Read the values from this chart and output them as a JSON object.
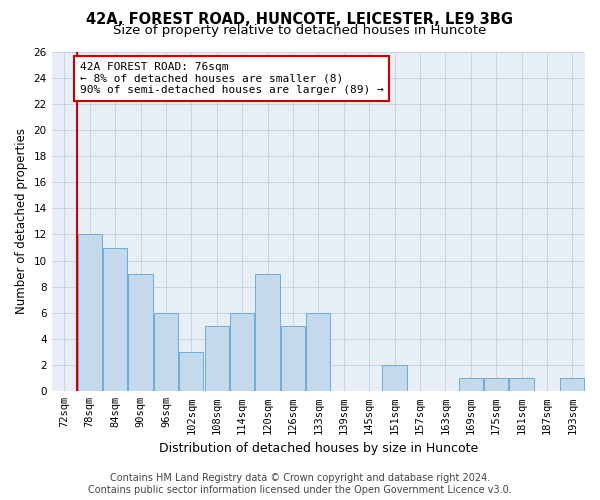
{
  "title": "42A, FOREST ROAD, HUNCOTE, LEICESTER, LE9 3BG",
  "subtitle": "Size of property relative to detached houses in Huncote",
  "xlabel": "Distribution of detached houses by size in Huncote",
  "ylabel": "Number of detached properties",
  "categories": [
    "72sqm",
    "78sqm",
    "84sqm",
    "90sqm",
    "96sqm",
    "102sqm",
    "108sqm",
    "114sqm",
    "120sqm",
    "126sqm",
    "133sqm",
    "139sqm",
    "145sqm",
    "151sqm",
    "157sqm",
    "163sqm",
    "169sqm",
    "175sqm",
    "181sqm",
    "187sqm",
    "193sqm"
  ],
  "values": [
    0,
    12,
    11,
    9,
    6,
    3,
    5,
    6,
    9,
    5,
    6,
    0,
    0,
    2,
    0,
    0,
    1,
    1,
    1,
    0,
    1
  ],
  "bar_color": "#c5d9ed",
  "bar_edge_color": "#6aaed6",
  "grid_color": "#c8d4e3",
  "background_color": "#e8eef6",
  "vline_color": "#cc0000",
  "annotation_text": "42A FOREST ROAD: 76sqm\n← 8% of detached houses are smaller (8)\n90% of semi-detached houses are larger (89) →",
  "annotation_box_color": "#ffffff",
  "annotation_box_edge": "#cc0000",
  "ylim": [
    0,
    26
  ],
  "yticks": [
    0,
    2,
    4,
    6,
    8,
    10,
    12,
    14,
    16,
    18,
    20,
    22,
    24,
    26
  ],
  "footer_line1": "Contains HM Land Registry data © Crown copyright and database right 2024.",
  "footer_line2": "Contains public sector information licensed under the Open Government Licence v3.0.",
  "title_fontsize": 10.5,
  "subtitle_fontsize": 9.5,
  "xlabel_fontsize": 9,
  "ylabel_fontsize": 8.5,
  "tick_fontsize": 7.5,
  "footer_fontsize": 7,
  "annot_fontsize": 8
}
